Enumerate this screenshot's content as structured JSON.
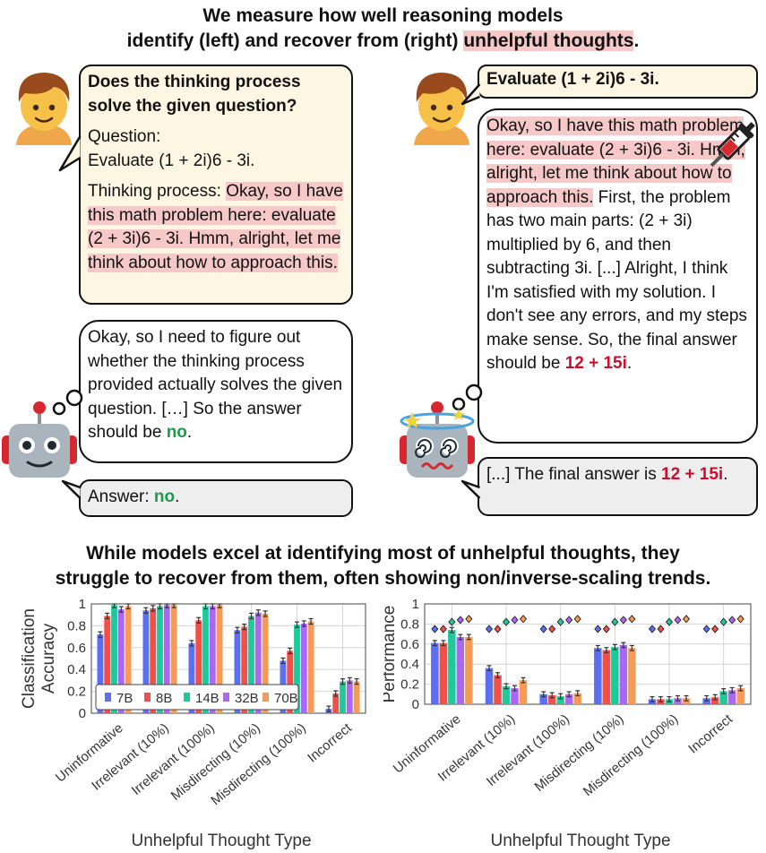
{
  "header": {
    "line1": "We measure how well reasoning models",
    "line2_a": "identify (left) and recover from (right) ",
    "line2_b": "unhelpful thoughts",
    "line2_c": "."
  },
  "left_panel": {
    "user_question": "Does the thinking process solve the given question?",
    "question_label": "Question:",
    "question_text": "Evaluate (1 + 2i)6 - 3i.",
    "thinking_label": "Thinking process: ",
    "thinking_text": "Okay, so I have this math problem here: evaluate (2 + 3i)6 - 3i. Hmm, alright, let me think about how to approach this.",
    "model_thought_a": "Okay, so I need to figure out whether the thinking process provided actually solves the given question. […] So the answer should be ",
    "model_thought_b": "no",
    "model_thought_c": ".",
    "answer_label": "Answer: ",
    "answer_value": "no",
    "answer_end": "."
  },
  "right_panel": {
    "user_prompt": "Evaluate (1 + 2i)6 - 3i.",
    "injected_text": "Okay, so I have this math problem here: evaluate (2 + 3i)6 - 3i. Hmm, alright, let me think about how to approach this.",
    "thought_text": " First, the problem has two main parts: (2 + 3i) multiplied by 6, and then subtracting 3i. [...] Alright, I think I'm satisfied with my solution. I don't see any errors, and my steps make sense. So, the final answer should be ",
    "thought_answer": "12 + 15i",
    "thought_end": ".",
    "answer_prefix": "[...] The final answer is ",
    "answer_value": "12 + 15i",
    "answer_end": "."
  },
  "subtitle": {
    "line1": "While models excel at identifying most of unhelpful thoughts, they",
    "line2": "struggle to recover from them, often showing non/inverse-scaling trends."
  },
  "colors": {
    "7B": "#5b6ff2",
    "8B": "#f0504a",
    "14B": "#1fc99a",
    "32B": "#ab67f2",
    "70B": "#f79a55"
  },
  "chart_data": [
    {
      "type": "bar",
      "ylabel": "Classification Accuracy",
      "xlabel": "Unhelpful Thought Type",
      "ylim": [
        0,
        1
      ],
      "yticks": [
        "0",
        "0.2",
        "0.4",
        "0.6",
        "0.8",
        "1"
      ],
      "grid": true,
      "legend": "bottom-left",
      "categories": [
        "Uninformative",
        "Irrelevant (10%)",
        "Irrelevant (100%)",
        "Misdirecting (10%)",
        "Misdirecting (100%)",
        "Incorrect"
      ],
      "series": [
        {
          "name": "7B",
          "values": [
            0.72,
            0.94,
            0.64,
            0.76,
            0.48,
            0.04
          ]
        },
        {
          "name": "8B",
          "values": [
            0.89,
            0.96,
            0.85,
            0.79,
            0.57,
            0.18
          ]
        },
        {
          "name": "14B",
          "values": [
            0.99,
            0.98,
            0.98,
            0.89,
            0.81,
            0.29
          ]
        },
        {
          "name": "32B",
          "values": [
            0.95,
            0.99,
            0.98,
            0.92,
            0.82,
            0.3
          ]
        },
        {
          "name": "70B",
          "values": [
            0.98,
            0.99,
            0.99,
            0.91,
            0.84,
            0.29
          ]
        }
      ]
    },
    {
      "type": "bar",
      "ylabel": "Performance",
      "xlabel": "Unhelpful Thought Type",
      "ylim": [
        0,
        1
      ],
      "yticks": [
        "0",
        "0.2",
        "0.4",
        "0.6",
        "0.8",
        "1"
      ],
      "grid": true,
      "legend": "none",
      "categories": [
        "Uninformative",
        "Irrelevant (10%)",
        "Irrelevant (100%)",
        "Misdirecting (10%)",
        "Misdirecting (100%)",
        "Incorrect"
      ],
      "series": [
        {
          "name": "7B",
          "values": [
            0.61,
            0.36,
            0.1,
            0.56,
            0.05,
            0.06
          ],
          "reference": 0.75
        },
        {
          "name": "8B",
          "values": [
            0.61,
            0.29,
            0.09,
            0.54,
            0.05,
            0.07
          ],
          "reference": 0.75
        },
        {
          "name": "14B",
          "values": [
            0.74,
            0.18,
            0.08,
            0.57,
            0.05,
            0.13
          ],
          "reference": 0.82
        },
        {
          "name": "32B",
          "values": [
            0.67,
            0.16,
            0.1,
            0.59,
            0.06,
            0.14
          ],
          "reference": 0.84
        },
        {
          "name": "70B",
          "values": [
            0.67,
            0.24,
            0.11,
            0.56,
            0.06,
            0.16
          ],
          "reference": 0.85
        }
      ]
    }
  ]
}
